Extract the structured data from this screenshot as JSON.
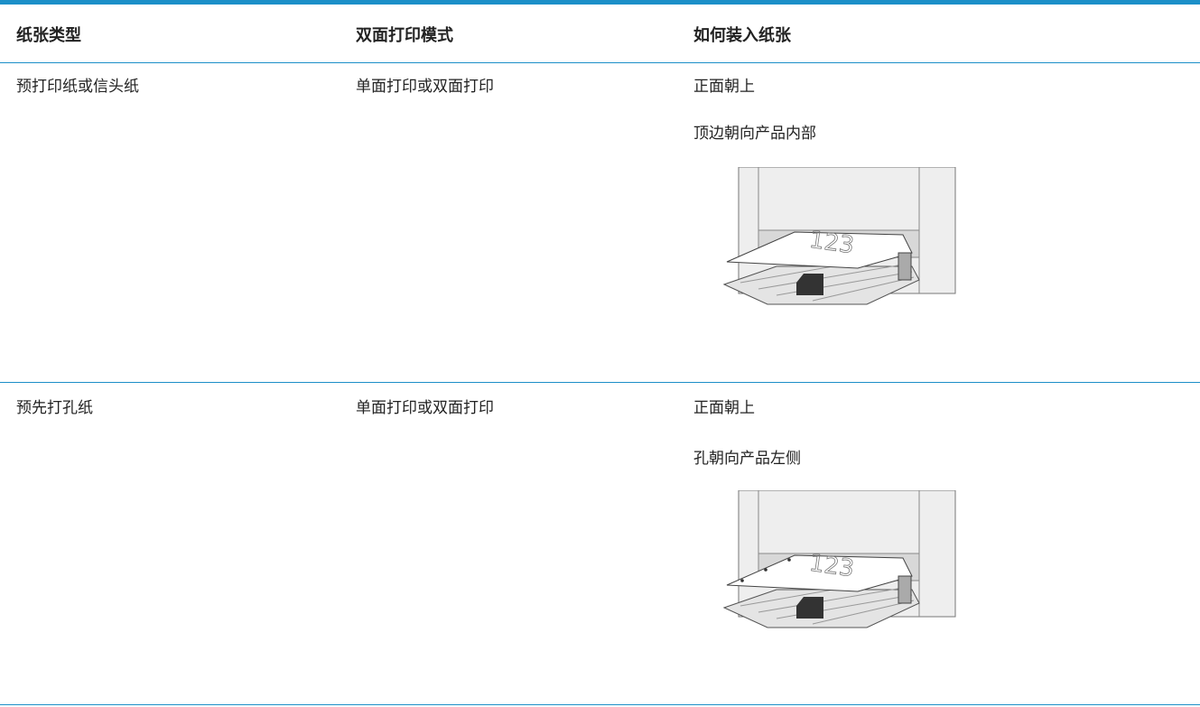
{
  "table": {
    "columns": [
      "纸张类型",
      "双面打印模式",
      "如何装入纸张"
    ],
    "rows": [
      {
        "paper_type": "预打印纸或信头纸",
        "duplex_mode": "单面打印或双面打印",
        "instructions": [
          "正面朝上",
          "顶边朝向产品内部"
        ],
        "illustration_label": "123"
      },
      {
        "paper_type": "预先打孔纸",
        "duplex_mode": "单面打印或双面打印",
        "instructions": [
          "正面朝上",
          "孔朝向产品左侧"
        ],
        "illustration_label": "123"
      }
    ]
  }
}
